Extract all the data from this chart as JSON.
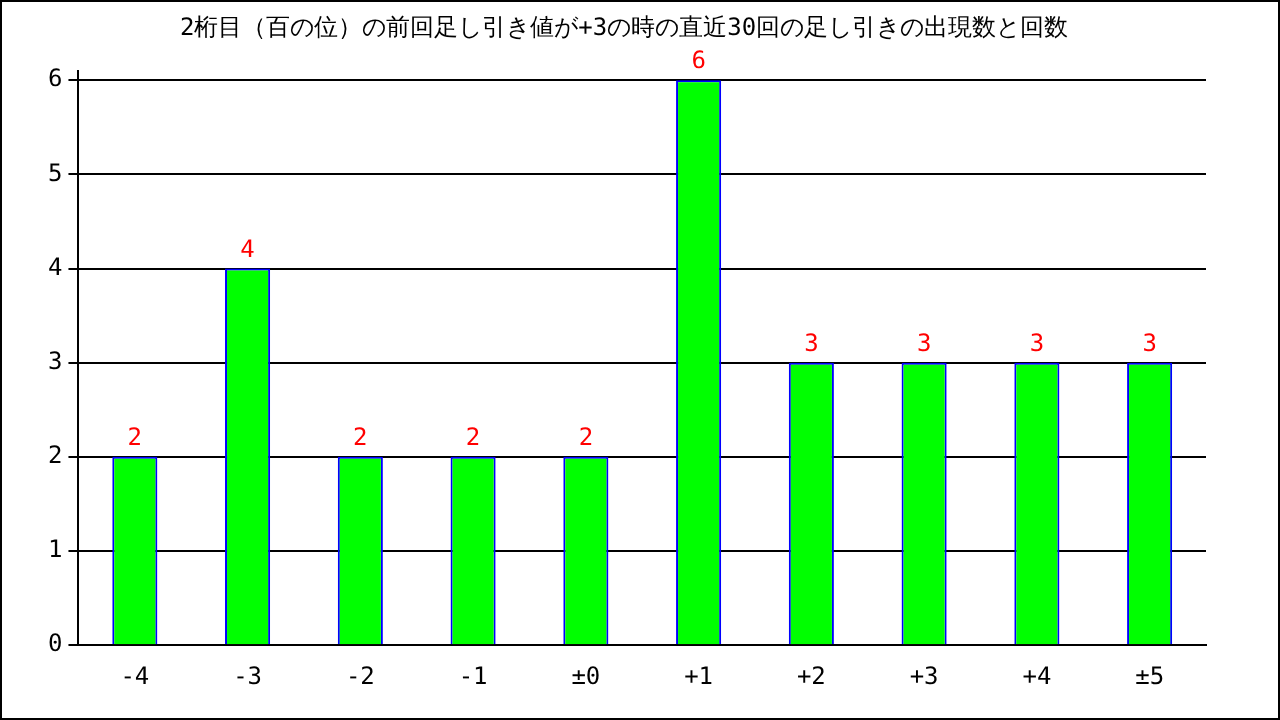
{
  "chart_data": {
    "type": "bar",
    "title": "2桁目（百の位）の前回足し引き値が+3の時の直近30回の足し引きの出現数と回数",
    "categories": [
      "-4",
      "-3",
      "-2",
      "-1",
      "±0",
      "+1",
      "+2",
      "+3",
      "+4",
      "±5"
    ],
    "values": [
      2,
      4,
      2,
      2,
      2,
      6,
      3,
      3,
      3,
      3
    ],
    "color": "#00ff00",
    "ylim": [
      0,
      6.1
    ],
    "yticks": [
      0,
      1,
      2,
      3,
      4,
      5,
      6
    ],
    "grid": "y",
    "data_labels": true,
    "legend": false
  }
}
